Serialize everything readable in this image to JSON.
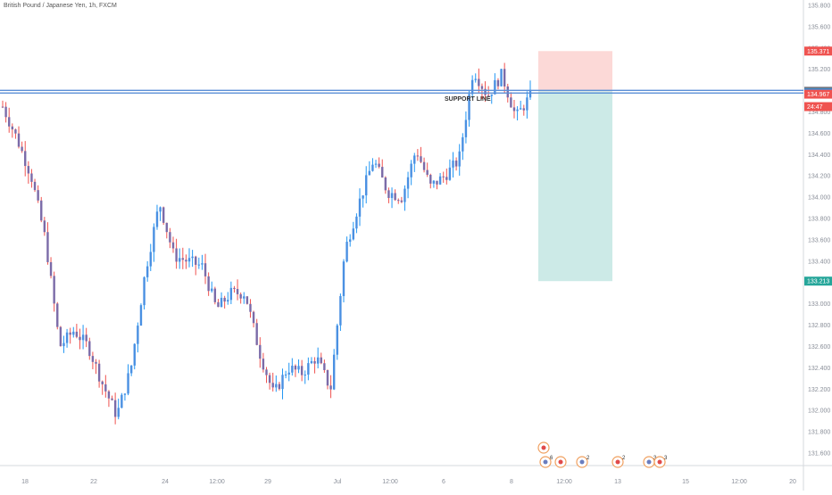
{
  "symbol_title": "British Pound / Japanese Yen, 1h, FXCM",
  "chart_data": {
    "type": "candlestick",
    "title": "British Pound / Japanese Yen, 1h, FXCM",
    "ylim": [
      131.55,
      135.95
    ],
    "y_ticks": [
      131.6,
      131.8,
      132.0,
      132.2,
      132.4,
      132.6,
      132.8,
      133.0,
      133.2,
      133.4,
      133.6,
      133.8,
      134.0,
      134.2,
      134.4,
      134.6,
      134.8,
      135.0,
      135.2,
      135.4,
      135.6,
      135.8
    ],
    "x_ticks": [
      "18",
      "22",
      "24",
      "12:00",
      "29",
      "Jul",
      "12:00",
      "6",
      "8",
      "12:00",
      "13",
      "15",
      "12:00",
      "20"
    ],
    "price_path": [
      134.85,
      134.55,
      134.2,
      133.6,
      132.6,
      132.75,
      132.6,
      132.25,
      131.95,
      132.4,
      133.3,
      133.95,
      133.45,
      133.4,
      133.35,
      132.95,
      133.1,
      133.1,
      132.55,
      132.15,
      132.4,
      132.35,
      132.5,
      132.2,
      133.5,
      133.95,
      134.35,
      134.05,
      134.0,
      134.45,
      134.1,
      134.2,
      134.35,
      135.2,
      134.95,
      135.15,
      134.75,
      134.95
    ],
    "support_line": {
      "label": "SUPPORT LINE",
      "value": 134.99
    },
    "position": {
      "entry": 134.994,
      "stop": 135.371,
      "target": 133.213
    },
    "price_tags": [
      {
        "value": 135.371,
        "label": "135.371",
        "color": "#ef5350"
      },
      {
        "value": 134.994,
        "label": "134.994",
        "color": "#707580"
      },
      {
        "value": 134.977,
        "label": "134.977",
        "color": "#2196f3"
      },
      {
        "value": 134.967,
        "label": "134.967",
        "color": "#ef5350"
      },
      {
        "value": 134.85,
        "label": "24:47",
        "color": "#ef5350"
      },
      {
        "value": 133.213,
        "label": "133.213",
        "color": "#26a69a"
      }
    ],
    "events": [
      {
        "slot": 0,
        "count": ""
      },
      {
        "slot": 1,
        "count": "6"
      },
      {
        "slot": 2,
        "count": ""
      },
      {
        "slot": 3,
        "count": "2"
      },
      {
        "slot": 4,
        "count": "2"
      },
      {
        "slot": 5,
        "count": "3"
      },
      {
        "slot": 6,
        "count": "3"
      }
    ],
    "colors": {
      "up": "#2196f3",
      "down": "#ef5350",
      "body_up": "#4a90e2",
      "body_down": "#7b6ba8",
      "support": "#5b8fd6",
      "stop_zone": "#fcd9d7",
      "target_zone": "#cceae7"
    }
  }
}
